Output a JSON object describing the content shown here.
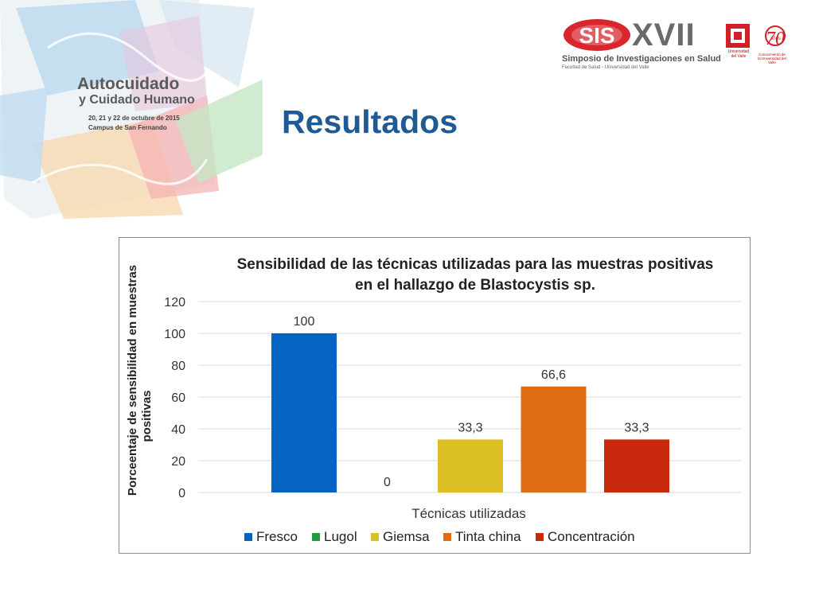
{
  "header": {
    "poster": {
      "title": "Autocuidado",
      "subtitle": "y Cuidado Humano",
      "dates": "20, 21 y 22 de octubre de 2015",
      "campus": "Campus de San Fernando"
    },
    "logo_sis": {
      "mark": "SIS",
      "roman": "XVII",
      "line1": "Simposio de Investigaciones en Salud",
      "line2": "Facultad de Salud - Universidad del Valle"
    },
    "logo_univalle": {
      "text": "Universidad del Valle"
    },
    "logo_70": {
      "number": "70",
      "unit": "años",
      "text": "Conocimiento de la Universidad del Valle"
    }
  },
  "slide": {
    "title": "Resultados"
  },
  "chart_data": {
    "type": "bar",
    "title": "Sensibilidad de las técnicas utilizadas para las muestras positivas",
    "title_line2": "en el hallazgo de Blastocystis sp.",
    "xlabel": "Técnicas utilizadas",
    "ylabel": "Porceentaje de sensibilidad en muestras",
    "ylabel_line2": "positivas",
    "ylim": [
      0,
      120
    ],
    "yticks": [
      "0",
      "20",
      "40",
      "60",
      "80",
      "100",
      "120"
    ],
    "grid": true,
    "legend_position": "bottom",
    "series": [
      {
        "name": "Fresco",
        "value": 100,
        "label": "100",
        "color": "#0563c1"
      },
      {
        "name": "Lugol",
        "value": 0,
        "label": "0",
        "color": "#1e9c3c"
      },
      {
        "name": "Giemsa",
        "value": 33.3,
        "label": "33,3",
        "color": "#dcbf24"
      },
      {
        "name": "Tinta china",
        "value": 66.6,
        "label": "66,6",
        "color": "#e06b15"
      },
      {
        "name": "Concentración",
        "value": 33.3,
        "label": "33,3",
        "color": "#c8280c"
      }
    ]
  }
}
